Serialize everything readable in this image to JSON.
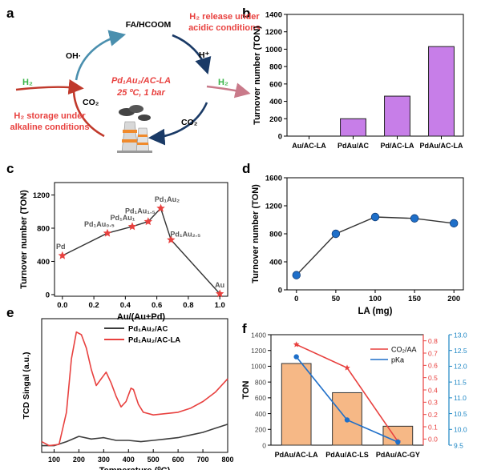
{
  "panel_letters": {
    "a": "a",
    "b": "b",
    "c": "c",
    "d": "d",
    "e": "e",
    "f": "f"
  },
  "colors": {
    "bar_purple": "#c77ee8",
    "accent_red": "#e8413f",
    "blue": "#1e6fc9",
    "orange_bar": "#f6b886",
    "teal_axis": "#1c86c4",
    "arrow_dark": "#1a3a66",
    "arrow_teal": "#4a8fae",
    "green": "#3bb54a"
  },
  "scheme": {
    "top": "FA/HCOOM",
    "oh": "OH·",
    "h_plus": "H⁺",
    "release": [
      "H₂ release under",
      "acidic conditions"
    ],
    "storage": [
      "H₂ storage under",
      "alkaline conditions"
    ],
    "h2_left": "H₂",
    "h2_right": "H₂",
    "co2_left": "CO₂",
    "co2_right": "CO₂",
    "catalyst": "Pd₁Au₂/AC-LA",
    "conditions": "25 ºC, 1 bar"
  },
  "legend_e": [
    "Pd₁Au₂/AC",
    "Pd₁Au₂/AC-LA"
  ],
  "chart_data": [
    {
      "panel": "b",
      "type": "bar",
      "categories": [
        "Au/AC-LA",
        "PdAu/AC",
        "Pd/AC-LA",
        "PdAu/AC-LA"
      ],
      "values": [
        0,
        200,
        460,
        1030
      ],
      "ylabel": "Turnover number (TON)",
      "xlabel": "",
      "ylim": [
        0,
        1400
      ],
      "yticks": [
        "0",
        "200",
        "400",
        "600",
        "800",
        "1000",
        "1200",
        "1400"
      ],
      "color": "#c77ee8"
    },
    {
      "panel": "c",
      "type": "scatter",
      "x": [
        0.0,
        0.286,
        0.444,
        0.545,
        0.625,
        0.69,
        1.0
      ],
      "y": [
        470,
        740,
        820,
        880,
        1040,
        660,
        10
      ],
      "point_labels": [
        "Pd",
        "Pd₁Au₀.₅",
        "Pd₁Au₁",
        "Pd₁Au₁.₅",
        "Pd₁Au₂",
        "Pd₁Au₂.₅",
        "Au"
      ],
      "xlabel": "Au/(Au+Pd)",
      "ylabel": "Turnover number (TON)",
      "xlim": [
        -0.05,
        1.05
      ],
      "ylim": [
        -20,
        1350
      ],
      "xticks": [
        "0.0",
        "0.2",
        "0.4",
        "0.6",
        "0.8",
        "1.0"
      ],
      "yticks": [
        "0",
        "400",
        "800",
        "1200"
      ],
      "marker": "star",
      "color": "#e8413f"
    },
    {
      "panel": "d",
      "type": "line",
      "x": [
        0,
        50,
        100,
        150,
        200
      ],
      "y": [
        210,
        800,
        1040,
        1020,
        950
      ],
      "xlabel": "LA (mg)",
      "ylabel": "Turnover number (TON)",
      "xlim": [
        -12,
        212
      ],
      "ylim": [
        0,
        1600
      ],
      "xticks": [
        "0",
        "50",
        "100",
        "150",
        "200"
      ],
      "yticks": [
        "0",
        "400",
        "800",
        "1200",
        "1600"
      ],
      "color": "#1e6fc9"
    },
    {
      "panel": "e",
      "type": "line",
      "xlabel": "Temperature (⁰C)",
      "ylabel": "TCD Singal (a.u.)",
      "xlim": [
        50,
        800
      ],
      "xticks": [
        "100",
        "200",
        "300",
        "400",
        "500",
        "600",
        "700",
        "800"
      ],
      "series": [
        {
          "name": "Pd₁Au₂/AC",
          "color": "#3c3c3c",
          "x": [
            50,
            100,
            150,
            200,
            250,
            300,
            350,
            400,
            450,
            500,
            550,
            600,
            650,
            700,
            750,
            800
          ],
          "y": [
            0.05,
            0.05,
            0.08,
            0.12,
            0.1,
            0.11,
            0.09,
            0.09,
            0.08,
            0.09,
            0.1,
            0.11,
            0.13,
            0.15,
            0.18,
            0.21
          ]
        },
        {
          "name": "Pd₁Au₂/AC-LA",
          "color": "#e8413f",
          "x": [
            50,
            80,
            120,
            150,
            170,
            190,
            210,
            230,
            250,
            270,
            290,
            310,
            330,
            350,
            370,
            390,
            410,
            420,
            440,
            460,
            500,
            550,
            600,
            650,
            700,
            750,
            800
          ],
          "y": [
            0.08,
            0.05,
            0.06,
            0.3,
            0.7,
            0.9,
            0.88,
            0.78,
            0.62,
            0.5,
            0.55,
            0.6,
            0.52,
            0.42,
            0.34,
            0.38,
            0.48,
            0.47,
            0.36,
            0.3,
            0.28,
            0.29,
            0.3,
            0.33,
            0.38,
            0.45,
            0.55
          ]
        }
      ]
    },
    {
      "panel": "f",
      "type": "bar",
      "categories": [
        "PdAu/AC-LA",
        "PdAu/AC-LS",
        "PdAu/AC-GY"
      ],
      "values": [
        1035,
        665,
        240
      ],
      "ylabel": "TON",
      "ylim": [
        0,
        1400
      ],
      "yticks": [
        "0",
        "200",
        "400",
        "600",
        "800",
        "1000",
        "1200",
        "1400"
      ],
      "color": "#f6b886",
      "series": [
        {
          "name": "CO₂/AA",
          "axis": "right1",
          "values": [
            0.77,
            0.58,
            -0.02
          ],
          "color": "#e8413f"
        },
        {
          "name": "pKa",
          "axis": "right2",
          "values": [
            12.3,
            10.3,
            9.6
          ],
          "color": "#1e6fc9"
        }
      ],
      "right1_ticks": [
        "0.0",
        "0.1",
        "0.2",
        "0.3",
        "0.4",
        "0.5",
        "0.6",
        "0.7",
        "0.8"
      ],
      "right1_lim": [
        -0.05,
        0.85
      ],
      "right2_ticks": [
        "9.5",
        "10.0",
        "10.5",
        "11.0",
        "11.5",
        "12.0",
        "12.5",
        "13.0"
      ],
      "right2_lim": [
        9.5,
        13.0
      ]
    }
  ]
}
